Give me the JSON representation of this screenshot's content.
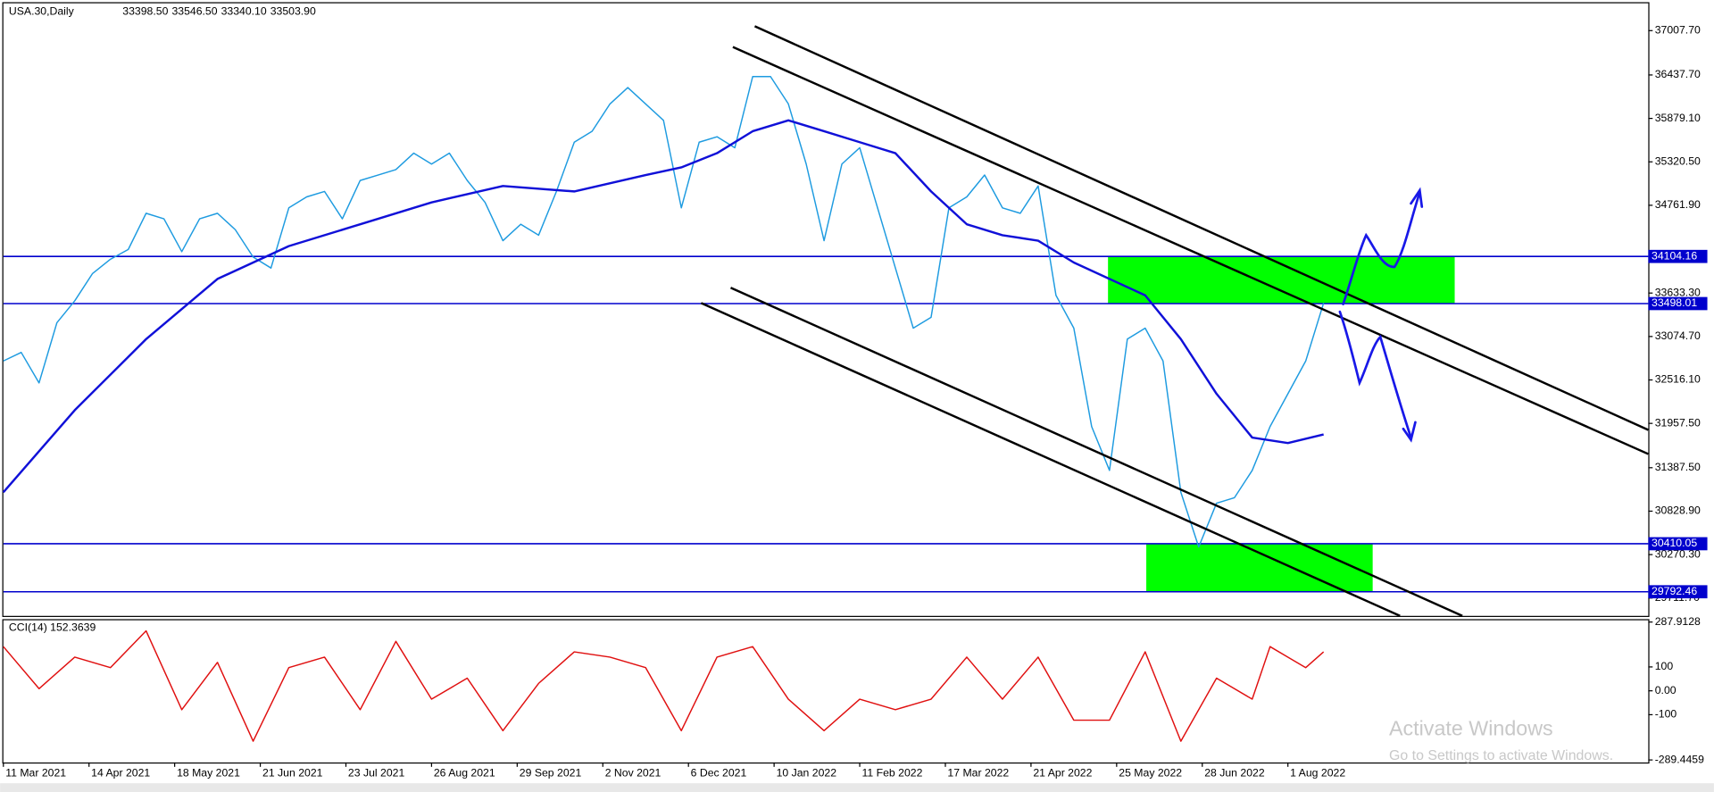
{
  "chart_data": [
    {
      "type": "line",
      "title": "USA.30,Daily",
      "ohlc": {
        "values": [
          33398.5,
          33546.5,
          33340.1,
          33503.9
        ],
        "value_labels": [
          "33398.50",
          "33546.50",
          "33340.10",
          "33503.90"
        ]
      },
      "xlim": [
        0,
        461
      ],
      "ylim": [
        29482.3,
        37331.2
      ],
      "yticks": [
        {
          "value": 37007.7,
          "label": "37007.70"
        },
        {
          "value": 36437.7,
          "label": "36437.70"
        },
        {
          "value": 35879.1,
          "label": "35879.10"
        },
        {
          "value": 35320.5,
          "label": "35320.50"
        },
        {
          "value": 34761.9,
          "label": "34761.90"
        },
        {
          "value": 33633.3,
          "label": "33633.30"
        },
        {
          "value": 33074.7,
          "label": "33074.70"
        },
        {
          "value": 32516.1,
          "label": "32516.10"
        },
        {
          "value": 31957.5,
          "label": "31957.50"
        },
        {
          "value": 31387.5,
          "label": "31387.50"
        },
        {
          "value": 30828.9,
          "label": "30828.90"
        },
        {
          "value": 30270.3,
          "label": "30270.30"
        },
        {
          "value": 29711.7,
          "label": "29711.70"
        }
      ],
      "levels": [
        34104.16,
        33498.01,
        30410.05,
        29792.46
      ],
      "level_color": "#0000cd",
      "zone_color": "#00ff00",
      "series": [
        {
          "color": "#1e9be0",
          "x": [
            0,
            5,
            10,
            15,
            20,
            25,
            30,
            35,
            40,
            45,
            50,
            55,
            60,
            65,
            70,
            75,
            80,
            85,
            90,
            95,
            100,
            105,
            110,
            115,
            120,
            125,
            130,
            135,
            140,
            145,
            150,
            155,
            160,
            165,
            170,
            175,
            180,
            185,
            190,
            195,
            200,
            205,
            210,
            215,
            220,
            225,
            230,
            235,
            240,
            245,
            250,
            255,
            260,
            265,
            270,
            275,
            280,
            285,
            290,
            295,
            300,
            305,
            310,
            315,
            320,
            325,
            330,
            335,
            340,
            345,
            350,
            355,
            360,
            365,
            370
          ],
          "values": [
            32760,
            32870,
            32478,
            33252,
            33533,
            33885,
            34068,
            34194,
            34659,
            34588,
            34166,
            34588,
            34659,
            34448,
            34096,
            33955,
            34729,
            34870,
            34940,
            34588,
            35081,
            35151,
            35221,
            35432,
            35292,
            35432,
            35081,
            34799,
            34307,
            34518,
            34377,
            34940,
            35573,
            35714,
            36065,
            36276,
            36065,
            35854,
            34729,
            35573,
            35643,
            35502,
            36417,
            36417,
            36065,
            35292,
            34307,
            35292,
            35502,
            34729,
            33955,
            33182,
            33322,
            34729,
            34870,
            35151,
            34729,
            34659,
            35010,
            33604,
            33182,
            31916,
            31353,
            33041,
            33182,
            32760,
            31072,
            30368,
            30931,
            31001,
            31353,
            31916,
            32338,
            32760,
            33504
          ]
        },
        {
          "color": "#1010d8",
          "x": [
            0,
            20,
            40,
            60,
            80,
            100,
            120,
            140,
            160,
            180,
            190,
            200,
            210,
            220,
            230,
            240,
            250,
            260,
            270,
            280,
            290,
            300,
            310,
            320,
            330,
            340,
            350,
            360,
            370
          ],
          "values": [
            31072,
            32127,
            33041,
            33815,
            34237,
            34518,
            34799,
            35010,
            34940,
            35151,
            35249,
            35432,
            35714,
            35854,
            35714,
            35573,
            35432,
            34940,
            34518,
            34377,
            34307,
            34026,
            33815,
            33604,
            33041,
            32338,
            31775,
            31705,
            31815
          ]
        }
      ]
    },
    {
      "type": "line",
      "title": "CCI(14) 152.3639",
      "xlim": [
        0,
        461
      ],
      "ylim": [
        -300,
        300
      ],
      "yticks": [
        287.9128,
        100,
        {
          "value": 0,
          "label": "0.00"
        },
        -100,
        -289.4459
      ],
      "xticks": [
        {
          "value": 0,
          "label": "11 Mar 2021"
        },
        {
          "value": 24,
          "label": "14 Apr 2021"
        },
        {
          "value": 48,
          "label": "18 May 2021"
        },
        {
          "value": 72,
          "label": "21 Jun 2021"
        },
        {
          "value": 96,
          "label": "23 Jul 2021"
        },
        {
          "value": 120,
          "label": "26 Aug 2021"
        },
        {
          "value": 144,
          "label": "29 Sep 2021"
        },
        {
          "value": 168,
          "label": "2 Nov 2021"
        },
        {
          "value": 192,
          "label": "6 Dec 2021"
        },
        {
          "value": 216,
          "label": "10 Jan 2022"
        },
        {
          "value": 240,
          "label": "11 Feb 2022"
        },
        {
          "value": 264,
          "label": "17 Mar 2022"
        },
        {
          "value": 288,
          "label": "21 Apr 2022"
        },
        {
          "value": 312,
          "label": "25 May 2022"
        },
        {
          "value": 336,
          "label": "28 Jun 2022"
        },
        {
          "value": 360,
          "label": "1 Aug 2022"
        }
      ],
      "series": [
        {
          "color": "#e01010",
          "x": [
            0,
            10,
            20,
            30,
            40,
            50,
            60,
            70,
            80,
            90,
            100,
            110,
            120,
            130,
            140,
            150,
            160,
            170,
            180,
            190,
            200,
            210,
            220,
            230,
            240,
            250,
            260,
            270,
            280,
            290,
            300,
            310,
            320,
            330,
            340,
            350,
            355,
            360,
            365,
            370
          ],
          "values": [
            185,
            9,
            141,
            97,
            251,
            -79,
            119,
            -211,
            97,
            141,
            -79,
            207,
            -35,
            53,
            -167,
            31,
            163,
            141,
            97,
            -167,
            141,
            185,
            -35,
            -167,
            -35,
            -79,
            -35,
            141,
            -35,
            141,
            -123,
            -123,
            163,
            -211,
            53,
            -35,
            185,
            141,
            97,
            163
          ]
        }
      ]
    }
  ],
  "watermark": {
    "title": "Activate Windows",
    "subtitle": "Go to Settings to activate Windows."
  }
}
